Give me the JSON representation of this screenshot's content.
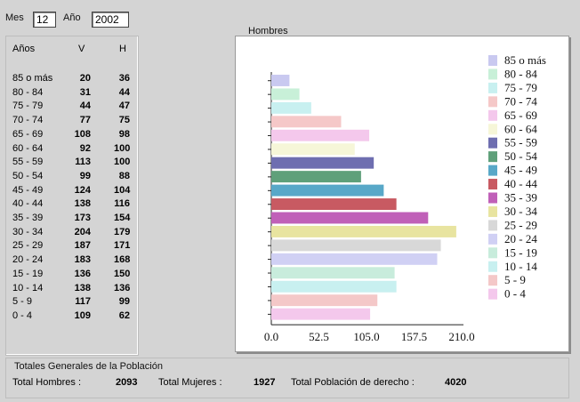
{
  "header": {
    "month_label": "Mes",
    "month_value": "12",
    "year_label": "Año",
    "year_value": "2002"
  },
  "table": {
    "columns": [
      "Años",
      "V",
      "H"
    ],
    "rows": [
      {
        "age": "85 o más",
        "v": "20",
        "h": "36"
      },
      {
        "age": "80 - 84",
        "v": "31",
        "h": "44"
      },
      {
        "age": "75 - 79",
        "v": "44",
        "h": "47"
      },
      {
        "age": "70 - 74",
        "v": "77",
        "h": "75"
      },
      {
        "age": "65 - 69",
        "v": "108",
        "h": "98"
      },
      {
        "age": "60 - 64",
        "v": "92",
        "h": "100"
      },
      {
        "age": "55 - 59",
        "v": "113",
        "h": "100"
      },
      {
        "age": "50 - 54",
        "v": "99",
        "h": "88"
      },
      {
        "age": "45 - 49",
        "v": "124",
        "h": "104"
      },
      {
        "age": "40 - 44",
        "v": "138",
        "h": "116"
      },
      {
        "age": "35 - 39",
        "v": "173",
        "h": "154"
      },
      {
        "age": "30 - 34",
        "v": "204",
        "h": "179"
      },
      {
        "age": "25 - 29",
        "v": "187",
        "h": "171"
      },
      {
        "age": "20 - 24",
        "v": "183",
        "h": "168"
      },
      {
        "age": "15 - 19",
        "v": "136",
        "h": "150"
      },
      {
        "age": "10 - 14",
        "v": "138",
        "h": "136"
      },
      {
        "age": "5 - 9",
        "v": "117",
        "h": "99"
      },
      {
        "age": "0 - 4",
        "v": "109",
        "h": "62"
      }
    ]
  },
  "chart_title": "Hombres",
  "chart_data": {
    "type": "bar",
    "orientation": "horizontal",
    "title": "Hombres",
    "categories": [
      "85 o más",
      "80 - 84",
      "75 - 79",
      "70 - 74",
      "65 - 69",
      "60 - 64",
      "55 - 59",
      "50 - 54",
      "45 - 49",
      "40 - 44",
      "35 - 39",
      "30 - 34",
      "25 - 29",
      "20 - 24",
      "15 - 19",
      "10 - 14",
      "5 - 9",
      "0 - 4"
    ],
    "values": [
      20,
      31,
      44,
      77,
      108,
      92,
      113,
      99,
      124,
      138,
      173,
      204,
      187,
      183,
      136,
      138,
      117,
      109
    ],
    "colors": [
      "#c9c9f0",
      "#c8f0d8",
      "#c8f0f0",
      "#f5c8c8",
      "#f4c8ec",
      "#f6f6d8",
      "#6e6eb0",
      "#5fa07a",
      "#58a8c8",
      "#c85a62",
      "#c060b8",
      "#e8e4a0",
      "#d8d8d8",
      "#d0d0f4",
      "#c8ecdc",
      "#c8f0f0",
      "#f4c8c8",
      "#f4c8ec"
    ],
    "xticks": [
      "0.0",
      "52.5",
      "105.0",
      "157.5",
      "210.0"
    ],
    "xlim": [
      0,
      210
    ],
    "legend_position": "right",
    "legend": [
      "85 o más",
      "80 - 84",
      "75 - 79",
      "70 - 74",
      "65 - 69",
      "60 - 64",
      "55 - 59",
      "50 - 54",
      "45 - 49",
      "40 - 44",
      "35 - 39",
      "30 - 34",
      "25 - 29",
      "20 - 24",
      "15 - 19",
      "10 - 14",
      "5 - 9",
      "0 - 4"
    ]
  },
  "totals": {
    "title": "Totales Generales de la Población",
    "men_label": "Total Hombres :",
    "men_value": "2093",
    "women_label": "Total Mujeres :",
    "women_value": "1927",
    "total_label": "Total Población de derecho :",
    "total_value": "4020"
  }
}
